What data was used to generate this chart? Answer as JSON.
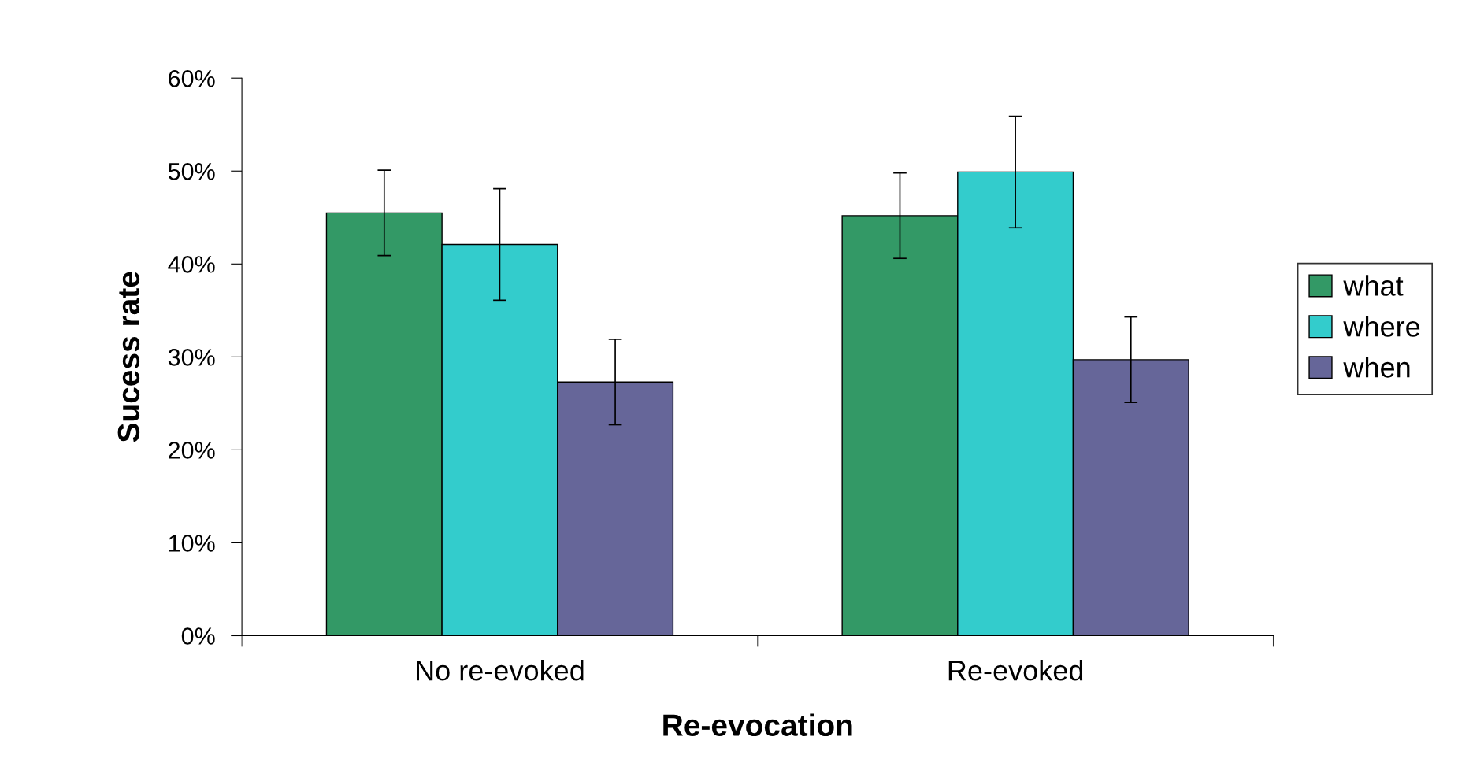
{
  "chart_data": {
    "type": "bar",
    "xlabel": "Re-evocation",
    "ylabel": "Sucess rate",
    "categories": [
      "No re-evoked",
      "Re-evoked"
    ],
    "series": [
      {
        "name": "what",
        "color": "#339966",
        "values": [
          45.5,
          45.2
        ],
        "errors": [
          4.6,
          4.6
        ]
      },
      {
        "name": "where",
        "color": "#33cccc",
        "values": [
          42.1,
          49.9
        ],
        "errors": [
          6.0,
          6.0
        ]
      },
      {
        "name": "when",
        "color": "#666699",
        "values": [
          27.3,
          29.7
        ],
        "errors": [
          4.6,
          4.6
        ]
      }
    ],
    "ylim": [
      0,
      60
    ],
    "yticks": [
      {
        "value": 0,
        "label": "0%"
      },
      {
        "value": 10,
        "label": "10%"
      },
      {
        "value": 20,
        "label": "20%"
      },
      {
        "value": 30,
        "label": "30%"
      },
      {
        "value": 40,
        "label": "40%"
      },
      {
        "value": 50,
        "label": "50%"
      },
      {
        "value": 60,
        "label": "60%"
      }
    ],
    "grid": false,
    "legend": "right"
  }
}
